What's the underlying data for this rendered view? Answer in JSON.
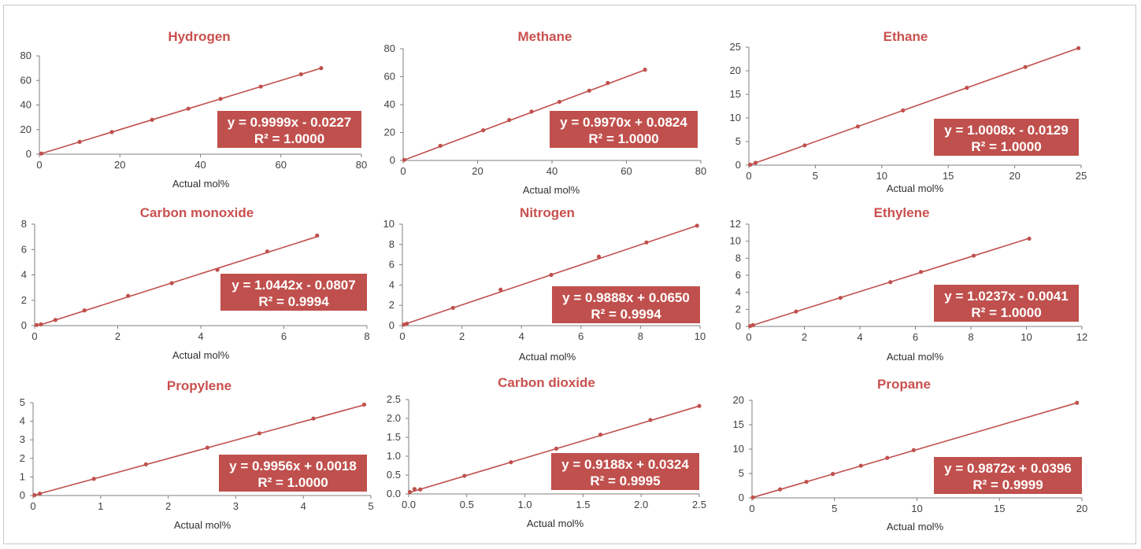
{
  "chart_data": [
    {
      "type": "scatter",
      "title": "Hydrogen",
      "xlabel": "Actual mol%",
      "ylabel": "",
      "xlim": [
        0,
        80
      ],
      "ylim": [
        0,
        80
      ],
      "xticks": [
        0,
        20,
        40,
        60,
        80
      ],
      "yticks": [
        0,
        20,
        40,
        60,
        80
      ],
      "x": [
        0.5,
        10,
        18,
        28,
        37,
        45,
        55,
        65,
        70
      ],
      "y": [
        0.5,
        10,
        18,
        28,
        37,
        45,
        55,
        65,
        70
      ],
      "trendline": {
        "slope": 0.9999,
        "intercept": -0.0227
      },
      "equation": "y = 0.9999x - 0.0227",
      "r_squared": "R² = 1.0000"
    },
    {
      "type": "scatter",
      "title": "Methane",
      "xlabel": "Actual mol%",
      "ylabel": "",
      "xlim": [
        0,
        80
      ],
      "ylim": [
        0,
        80
      ],
      "xticks": [
        0,
        20,
        40,
        60,
        80
      ],
      "yticks": [
        0,
        20,
        40,
        60,
        80
      ],
      "x": [
        0.3,
        10,
        21.5,
        28.5,
        34.5,
        42,
        50,
        55,
        65
      ],
      "y": [
        0.4,
        10.5,
        21.6,
        29,
        35,
        42,
        50,
        55.5,
        65
      ],
      "trendline": {
        "slope": 0.997,
        "intercept": 0.0824
      },
      "equation": "y = 0.9970x + 0.0824",
      "r_squared": "R² = 1.0000"
    },
    {
      "type": "scatter",
      "title": "Ethane",
      "xlabel": "Actual mol%",
      "ylabel": "",
      "xlim": [
        0,
        25
      ],
      "ylim": [
        0,
        25
      ],
      "xticks": [
        0,
        5,
        10,
        15,
        20,
        25
      ],
      "yticks": [
        0,
        5,
        10,
        15,
        20,
        25
      ],
      "x": [
        0.1,
        0.5,
        4.2,
        8.2,
        11.6,
        16.4,
        20.8,
        24.8
      ],
      "y": [
        0.1,
        0.5,
        4.2,
        8.2,
        11.6,
        16.4,
        20.8,
        24.8
      ],
      "trendline": {
        "slope": 1.0008,
        "intercept": -0.0129
      },
      "equation": "y = 1.0008x - 0.0129",
      "r_squared": "R² = 1.0000"
    },
    {
      "type": "scatter",
      "title": "Carbon monoxide",
      "xlabel": "Actual mol%",
      "ylabel": "",
      "xlim": [
        0,
        8
      ],
      "ylim": [
        0,
        8
      ],
      "xticks": [
        0,
        2,
        4,
        6,
        8
      ],
      "yticks": [
        0,
        2,
        4,
        6,
        8
      ],
      "x": [
        0.05,
        0.15,
        0.5,
        1.2,
        2.25,
        3.3,
        4.4,
        5.6,
        6.8
      ],
      "y": [
        0.05,
        0.1,
        0.45,
        1.2,
        2.35,
        3.35,
        4.4,
        5.85,
        7.1
      ],
      "trendline": {
        "slope": 1.0442,
        "intercept": -0.0807
      },
      "equation": "y = 1.0442x - 0.0807",
      "r_squared": "R² = 0.9994"
    },
    {
      "type": "scatter",
      "title": "Nitrogen",
      "xlabel": "Actual mol%",
      "ylabel": "",
      "xlim": [
        0,
        10
      ],
      "ylim": [
        0,
        10
      ],
      "xticks": [
        0,
        2,
        4,
        6,
        8,
        10
      ],
      "yticks": [
        0,
        2,
        4,
        6,
        8,
        10
      ],
      "x": [
        0.05,
        0.15,
        1.7,
        3.3,
        5,
        6.6,
        8.2,
        9.9
      ],
      "y": [
        0.1,
        0.2,
        1.75,
        3.55,
        5,
        6.8,
        8.2,
        9.85
      ],
      "trendline": {
        "slope": 0.9888,
        "intercept": 0.065
      },
      "equation": "y = 0.9888x + 0.0650",
      "r_squared": "R² = 0.9994"
    },
    {
      "type": "scatter",
      "title": "Ethylene",
      "xlabel": "Actual mol%",
      "ylabel": "",
      "xlim": [
        0,
        12
      ],
      "ylim": [
        0,
        12
      ],
      "xticks": [
        0,
        2,
        4,
        6,
        8,
        10,
        12
      ],
      "yticks": [
        0,
        2,
        4,
        6,
        8,
        10,
        12
      ],
      "x": [
        0.05,
        0.15,
        1.7,
        3.3,
        5.1,
        6.2,
        8.1,
        10.1
      ],
      "y": [
        0.05,
        0.15,
        1.75,
        3.35,
        5.2,
        6.4,
        8.3,
        10.3
      ],
      "trendline": {
        "slope": 1.0237,
        "intercept": -0.0041
      },
      "equation": "y = 1.0237x - 0.0041",
      "r_squared": "R² = 1.0000"
    },
    {
      "type": "scatter",
      "title": "Propylene",
      "xlabel": "Actual mol%",
      "ylabel": "",
      "xlim": [
        0,
        5
      ],
      "ylim": [
        0,
        5
      ],
      "xticks": [
        0,
        1,
        2,
        3,
        4,
        5
      ],
      "yticks": [
        0,
        1,
        2,
        3,
        4,
        5
      ],
      "x": [
        0.02,
        0.1,
        0.9,
        1.67,
        2.58,
        3.35,
        4.15,
        4.9
      ],
      "y": [
        0.02,
        0.1,
        0.9,
        1.68,
        2.58,
        3.35,
        4.15,
        4.9
      ],
      "trendline": {
        "slope": 0.9956,
        "intercept": 0.0018
      },
      "equation": "y = 0.9956x + 0.0018",
      "r_squared": "R² = 1.0000"
    },
    {
      "type": "scatter",
      "title": "Carbon dioxide",
      "xlabel": "Actual mol%",
      "ylabel": "",
      "xlim": [
        0,
        2.5
      ],
      "ylim": [
        0,
        2.5
      ],
      "xticks": [
        "0.0",
        "0.5",
        "1.0",
        "1.5",
        "2.0",
        "2.5"
      ],
      "yticks": [
        "0.0",
        "0.5",
        "1.0",
        "1.5",
        "2.0",
        "2.5"
      ],
      "x": [
        0.01,
        0.05,
        0.1,
        0.48,
        0.88,
        1.27,
        1.65,
        2.08,
        2.5
      ],
      "y": [
        0.05,
        0.13,
        0.12,
        0.48,
        0.84,
        1.2,
        1.57,
        1.96,
        2.33
      ],
      "trendline": {
        "slope": 0.9188,
        "intercept": 0.0324
      },
      "equation": "y = 0.9188x + 0.0324",
      "r_squared": "R² = 0.9995"
    },
    {
      "type": "scatter",
      "title": "Propane",
      "xlabel": "Actual mol%",
      "ylabel": "",
      "xlim": [
        0,
        20
      ],
      "ylim": [
        0,
        20
      ],
      "xticks": [
        0,
        5,
        10,
        15,
        20
      ],
      "yticks": [
        0,
        5,
        10,
        15,
        20
      ],
      "x": [
        0.05,
        1.7,
        3.3,
        4.9,
        6.6,
        8.2,
        9.8,
        19.7
      ],
      "y": [
        0.1,
        1.75,
        3.3,
        4.9,
        6.6,
        8.2,
        9.8,
        19.5
      ],
      "trendline": {
        "slope": 0.9872,
        "intercept": 0.0396
      },
      "equation": "y = 0.9872x + 0.0396",
      "r_squared": "R² = 0.9999"
    }
  ],
  "colors": {
    "accent": "#c0504d",
    "title": "#c9504e",
    "axis": "#7f7f7f"
  }
}
